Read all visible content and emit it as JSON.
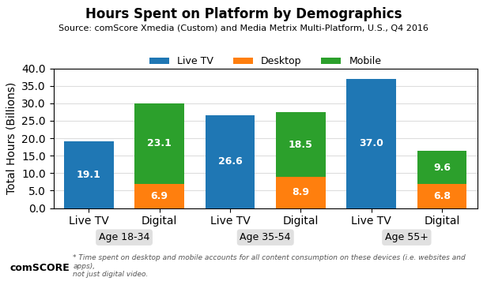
{
  "chart_data": {
    "type": "bar",
    "title": "Hours Spent on Platform by Demographics",
    "subtitle": "Source: comScore Xmedia (Custom) and Media Metrix Multi-Platform, U.S., Q4 2016",
    "y_label": "Total Hours (Billions)",
    "categories": [
      "Live TV",
      "Digital",
      "Live TV",
      "Digital",
      "Live TV",
      "Digital"
    ],
    "groups": [
      "Age 18-34",
      "Age 35-54",
      "Age 55+"
    ],
    "series": [
      {
        "name": "Live TV",
        "values": [
          19.1,
          null,
          26.6,
          null,
          37.0,
          null
        ]
      },
      {
        "name": "Desktop",
        "values": [
          null,
          6.9,
          null,
          8.9,
          null,
          6.8
        ]
      },
      {
        "name": "Mobile",
        "values": [
          null,
          23.1,
          null,
          18.5,
          null,
          9.6
        ]
      }
    ],
    "stacked": true,
    "data_labels": true,
    "ylim": [
      0,
      40
    ],
    "yticks": [
      {
        "value": 0,
        "label": "0.0"
      },
      {
        "value": 5,
        "label": "5.0"
      },
      {
        "value": 10,
        "label": "10.0"
      },
      {
        "value": 15,
        "label": "15.0"
      },
      {
        "value": 20,
        "label": "20.0"
      },
      {
        "value": 25,
        "label": "25.0"
      },
      {
        "value": 30,
        "label": "30.0"
      },
      {
        "value": 35,
        "label": "35.0"
      },
      {
        "value": 40,
        "label": "40.0"
      }
    ],
    "grid": true,
    "legend": "upper center",
    "annotations": [
      "comSCORE",
      "* Time spent on desktop and mobile accounts for all content consumption on these devices (i.e. websites and apps),\nnot just digital video."
    ]
  }
}
